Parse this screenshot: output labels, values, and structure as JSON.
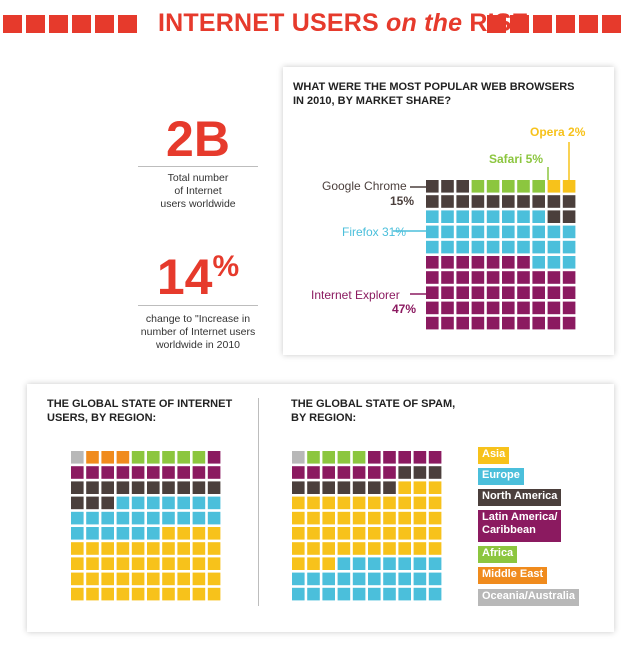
{
  "header": {
    "title_part1": "INTERNET USERS ",
    "title_part2": "on the",
    "title_part3": " RISE"
  },
  "stat_users": {
    "value": "2B",
    "caption_line1": "Total number",
    "caption_line2": "of Internet",
    "caption_line3": "users worldwide"
  },
  "stat_change": {
    "value": "14",
    "unit": "%",
    "caption_line1": "change to \"Increase in",
    "caption_line2": "number of Internet users",
    "caption_line3": "worldwide in 2010"
  },
  "colors": {
    "accent": "#e63a2c",
    "chrome": "#4b3f3c",
    "firefox": "#4bbfdb",
    "ie": "#8b1a60",
    "safari": "#8cc63f",
    "opera": "#f7c21b",
    "asia": "#f7c21b",
    "europe": "#4bbfdb",
    "north_america": "#4b3f3c",
    "latin_america": "#8b1a60",
    "africa": "#8cc63f",
    "middle_east": "#f08b1d",
    "oceania": "#b8b8b8"
  },
  "chart_data": [
    {
      "type": "waffle",
      "title": "WHAT WERE THE MOST POPULAR WEB BROWSERS IN 2010, BY MARKET SHARE?",
      "unit": "%",
      "series": [
        {
          "name": "Opera",
          "value": 2,
          "label": "Opera 2%",
          "color": "#f7c21b"
        },
        {
          "name": "Safari",
          "value": 5,
          "label": "Safari 5%",
          "color": "#8cc63f"
        },
        {
          "name": "Google Chrome",
          "value": 15,
          "label": "15%",
          "color": "#4b3f3c"
        },
        {
          "name": "Firefox",
          "value": 31,
          "label": "Firefox 31%",
          "color": "#4bbfdb"
        },
        {
          "name": "Internet Explorer",
          "value": 47,
          "label": "47%",
          "color": "#8b1a60"
        }
      ]
    },
    {
      "type": "waffle",
      "title": "THE GLOBAL STATE OF INTERNET USERS, BY REGION:",
      "series": [
        {
          "name": "Oceania/Australia",
          "value": 1,
          "color": "#b8b8b8"
        },
        {
          "name": "Middle East",
          "value": 3,
          "color": "#f08b1d"
        },
        {
          "name": "Africa",
          "value": 5,
          "color": "#8cc63f"
        },
        {
          "name": "Latin America/ Caribbean",
          "value": 11,
          "color": "#8b1a60"
        },
        {
          "name": "North America",
          "value": 13,
          "color": "#4b3f3c"
        },
        {
          "name": "Europe",
          "value": 23,
          "color": "#4bbfdb"
        },
        {
          "name": "Asia",
          "value": 44,
          "color": "#f7c21b"
        }
      ]
    },
    {
      "type": "waffle",
      "title": "THE GLOBAL STATE OF SPAM, BY REGION:",
      "series": [
        {
          "name": "Oceania/Australia",
          "value": 1,
          "color": "#b8b8b8"
        },
        {
          "name": "Africa",
          "value": 4,
          "color": "#8cc63f"
        },
        {
          "name": "Latin America/ Caribbean",
          "value": 12,
          "color": "#8b1a60"
        },
        {
          "name": "North America",
          "value": 10,
          "color": "#4b3f3c"
        },
        {
          "name": "Asia",
          "value": 46,
          "color": "#f7c21b"
        },
        {
          "name": "Europe",
          "value": 27,
          "color": "#4bbfdb"
        }
      ]
    }
  ],
  "browser_labels": {
    "chrome_name": "Google Chrome",
    "chrome_pct": "15%",
    "firefox": "Firefox 31%",
    "ie_name": "Internet Explorer",
    "ie_pct": "47%",
    "safari": "Safari 5%",
    "opera": "Opera 2%"
  },
  "region_titles": {
    "users_line1": "THE GLOBAL STATE OF INTERNET",
    "users_line2": "USERS, BY REGION:",
    "spam_line1": "THE GLOBAL STATE OF SPAM,",
    "spam_line2": "BY REGION:"
  },
  "browser_title": {
    "line1": "WHAT WERE THE MOST POPULAR WEB BROWSERS",
    "line2": "IN 2010, BY MARKET SHARE?"
  },
  "legend": [
    {
      "label": "Asia",
      "color": "#f7c21b"
    },
    {
      "label": "Europe",
      "color": "#4bbfdb"
    },
    {
      "label": "North America",
      "color": "#4b3f3c"
    },
    {
      "label": "Latin America/",
      "label2": "Caribbean",
      "color": "#8b1a60"
    },
    {
      "label": "Africa",
      "color": "#8cc63f"
    },
    {
      "label": "Middle East",
      "color": "#f08b1d"
    },
    {
      "label": "Oceania/Australia",
      "color": "#b8b8b8"
    }
  ]
}
